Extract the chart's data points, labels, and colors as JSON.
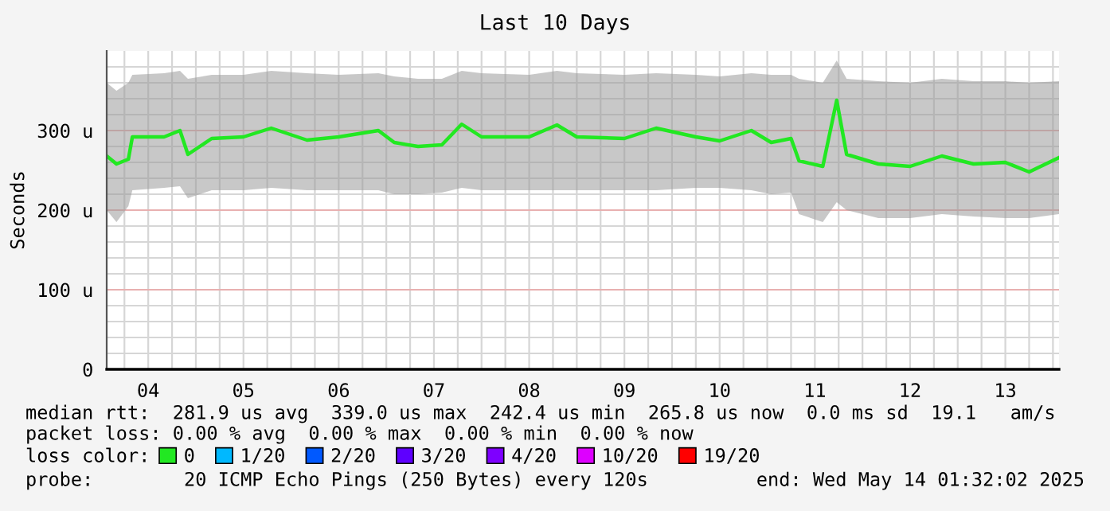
{
  "chart_data": {
    "type": "line",
    "title": "Last 10 Days",
    "ylabel": "Seconds",
    "x": [
      "2025-05-04T01:32",
      "2025-05-04T04:00",
      "2025-05-04T07:00",
      "2025-05-04T08:00",
      "2025-05-04T16:00",
      "2025-05-04T20:00",
      "2025-05-04T22:00",
      "2025-05-05T04:00",
      "2025-05-05T12:00",
      "2025-05-05T19:00",
      "2025-05-06T04:00",
      "2025-05-06T12:00",
      "2025-05-06T22:00",
      "2025-05-07T02:00",
      "2025-05-07T08:00",
      "2025-05-07T14:00",
      "2025-05-07T19:00",
      "2025-05-08T00:00",
      "2025-05-08T12:00",
      "2025-05-08T19:00",
      "2025-05-09T00:00",
      "2025-05-09T12:00",
      "2025-05-09T20:00",
      "2025-05-10T06:00",
      "2025-05-10T12:00",
      "2025-05-10T20:00",
      "2025-05-11T01:00",
      "2025-05-11T06:00",
      "2025-05-11T08:00",
      "2025-05-11T14:00",
      "2025-05-11T17:30",
      "2025-05-11T20:00",
      "2025-05-12T04:00",
      "2025-05-12T12:00",
      "2025-05-12T20:00",
      "2025-05-13T04:00",
      "2025-05-13T12:00",
      "2025-05-13T18:00",
      "2025-05-14T01:32"
    ],
    "series": [
      {
        "name": "0",
        "color": "#22e822",
        "values": [
          268,
          258,
          264,
          292,
          292,
          300,
          270,
          290,
          292,
          303,
          288,
          292,
          300,
          285,
          280,
          282,
          308,
          292,
          292,
          307,
          292,
          290,
          303,
          292,
          287,
          300,
          285,
          290,
          262,
          255,
          338,
          270,
          258,
          255,
          268,
          258,
          260,
          248,
          266
        ],
        "lower": [
          200,
          185,
          205,
          225,
          228,
          230,
          215,
          225,
          225,
          228,
          225,
          225,
          225,
          220,
          220,
          222,
          228,
          225,
          225,
          225,
          225,
          225,
          225,
          228,
          228,
          225,
          220,
          222,
          195,
          185,
          210,
          200,
          190,
          190,
          195,
          192,
          190,
          190,
          195
        ],
        "upper": [
          360,
          350,
          360,
          370,
          372,
          375,
          365,
          370,
          370,
          375,
          372,
          370,
          372,
          368,
          365,
          365,
          375,
          372,
          370,
          375,
          372,
          370,
          372,
          370,
          368,
          372,
          370,
          370,
          365,
          360,
          388,
          365,
          362,
          360,
          365,
          362,
          362,
          360,
          362
        ]
      },
      {
        "name": "1/20",
        "color": "#00b8ff",
        "values": [
          null,
          null,
          null,
          null,
          null,
          null,
          null,
          null,
          null,
          null,
          null,
          null,
          null,
          null,
          null,
          null,
          null,
          null,
          null,
          null,
          null,
          null,
          null,
          null,
          null,
          null,
          null,
          null,
          null,
          null,
          null,
          null,
          null,
          null,
          null,
          null,
          null,
          null,
          null
        ]
      },
      {
        "name": "2/20",
        "color": "#0059ff",
        "values": [
          null,
          null,
          null,
          null,
          null,
          null,
          null,
          null,
          null,
          null,
          null,
          null,
          null,
          null,
          null,
          null,
          null,
          null,
          null,
          null,
          null,
          null,
          null,
          null,
          null,
          null,
          null,
          null,
          null,
          null,
          null,
          null,
          null,
          null,
          null,
          null,
          null,
          null,
          null
        ]
      },
      {
        "name": "3/20",
        "color": "#5e00ff",
        "values": [
          null,
          null,
          null,
          null,
          null,
          null,
          null,
          null,
          null,
          null,
          null,
          null,
          null,
          null,
          null,
          null,
          null,
          null,
          null,
          null,
          null,
          null,
          null,
          null,
          null,
          null,
          null,
          null,
          null,
          null,
          null,
          null,
          null,
          null,
          null,
          null,
          null,
          null,
          null
        ]
      },
      {
        "name": "4/20",
        "color": "#7e00ff",
        "values": [
          null,
          null,
          null,
          null,
          null,
          null,
          null,
          null,
          null,
          null,
          null,
          null,
          null,
          null,
          null,
          null,
          null,
          null,
          null,
          null,
          null,
          null,
          null,
          null,
          null,
          null,
          null,
          null,
          null,
          null,
          null,
          null,
          null,
          null,
          null,
          null,
          null,
          null,
          null
        ]
      },
      {
        "name": "10/20",
        "color": "#dd00ff",
        "values": [
          null,
          null,
          null,
          null,
          null,
          null,
          null,
          null,
          null,
          null,
          null,
          null,
          null,
          null,
          null,
          null,
          null,
          null,
          null,
          null,
          null,
          null,
          null,
          null,
          null,
          null,
          null,
          null,
          null,
          null,
          null,
          null,
          null,
          null,
          null,
          null,
          null,
          null,
          null
        ]
      },
      {
        "name": "19/20",
        "color": "#ff0000",
        "values": [
          null,
          null,
          null,
          null,
          null,
          null,
          null,
          null,
          null,
          null,
          null,
          null,
          null,
          null,
          null,
          null,
          null,
          null,
          null,
          null,
          null,
          null,
          null,
          null,
          null,
          null,
          null,
          null,
          null,
          null,
          null,
          null,
          null,
          null,
          null,
          null,
          null,
          null,
          null
        ]
      }
    ],
    "legend_title": "loss color:",
    "legend": "bottom",
    "xlim": [
      "2025-05-04T01:32",
      "2025-05-14T01:32"
    ],
    "xticks": [
      {
        "value": "2025-05-04T06:00",
        "label": null
      },
      {
        "value": "2025-05-04T12:00",
        "label": "04"
      },
      {
        "value": "2025-05-04T18:00",
        "label": null
      },
      {
        "value": "2025-05-05T00:00",
        "label": null
      },
      {
        "value": "2025-05-05T06:00",
        "label": null
      },
      {
        "value": "2025-05-05T12:00",
        "label": "05"
      },
      {
        "value": "2025-05-05T18:00",
        "label": null
      },
      {
        "value": "2025-05-06T00:00",
        "label": null
      },
      {
        "value": "2025-05-06T06:00",
        "label": null
      },
      {
        "value": "2025-05-06T12:00",
        "label": "06"
      },
      {
        "value": "2025-05-06T18:00",
        "label": null
      },
      {
        "value": "2025-05-07T00:00",
        "label": null
      },
      {
        "value": "2025-05-07T06:00",
        "label": null
      },
      {
        "value": "2025-05-07T12:00",
        "label": "07"
      },
      {
        "value": "2025-05-07T18:00",
        "label": null
      },
      {
        "value": "2025-05-08T00:00",
        "label": null
      },
      {
        "value": "2025-05-08T06:00",
        "label": null
      },
      {
        "value": "2025-05-08T12:00",
        "label": "08"
      },
      {
        "value": "2025-05-08T18:00",
        "label": null
      },
      {
        "value": "2025-05-09T00:00",
        "label": null
      },
      {
        "value": "2025-05-09T06:00",
        "label": null
      },
      {
        "value": "2025-05-09T12:00",
        "label": "09"
      },
      {
        "value": "2025-05-09T18:00",
        "label": null
      },
      {
        "value": "2025-05-10T00:00",
        "label": null
      },
      {
        "value": "2025-05-10T06:00",
        "label": null
      },
      {
        "value": "2025-05-10T12:00",
        "label": "10"
      },
      {
        "value": "2025-05-10T18:00",
        "label": null
      },
      {
        "value": "2025-05-11T00:00",
        "label": null
      },
      {
        "value": "2025-05-11T06:00",
        "label": null
      },
      {
        "value": "2025-05-11T12:00",
        "label": "11"
      },
      {
        "value": "2025-05-11T18:00",
        "label": null
      },
      {
        "value": "2025-05-12T00:00",
        "label": null
      },
      {
        "value": "2025-05-12T06:00",
        "label": null
      },
      {
        "value": "2025-05-12T12:00",
        "label": "12"
      },
      {
        "value": "2025-05-12T18:00",
        "label": null
      },
      {
        "value": "2025-05-13T00:00",
        "label": null
      },
      {
        "value": "2025-05-13T06:00",
        "label": null
      },
      {
        "value": "2025-05-13T12:00",
        "label": "13"
      },
      {
        "value": "2025-05-13T18:00",
        "label": null
      },
      {
        "value": "2025-05-14T00:00",
        "label": null
      }
    ],
    "ylim": [
      0,
      400
    ],
    "yticks": [
      0,
      {
        "value": 20,
        "label": null
      },
      {
        "value": 40,
        "label": null
      },
      {
        "value": 60,
        "label": null
      },
      {
        "value": 80,
        "label": null
      },
      {
        "value": 100,
        "label": "100 u"
      },
      {
        "value": 120,
        "label": null
      },
      {
        "value": 140,
        "label": null
      },
      {
        "value": 160,
        "label": null
      },
      {
        "value": 180,
        "label": null
      },
      {
        "value": 200,
        "label": "200 u"
      },
      {
        "value": 220,
        "label": null
      },
      {
        "value": 240,
        "label": null
      },
      {
        "value": 260,
        "label": null
      },
      {
        "value": 280,
        "label": null
      },
      {
        "value": 300,
        "label": "300 u"
      },
      {
        "value": 320,
        "label": null
      },
      {
        "value": 340,
        "label": null
      },
      {
        "value": 360,
        "label": null
      },
      {
        "value": 380,
        "label": null
      }
    ],
    "grid": true,
    "marker": "none",
    "line_style": "solid",
    "annotations": [
      "median rtt:  281.9 us avg  339.0 us max  242.4 us min  265.8 us now  0.0 ms sd  19.1   am/s",
      "packet loss: 0.00 % avg  0.00 % max  0.00 % min  0.00 % now",
      "probe:        20 ICMP Echo Pings (250 Bytes) every 120s",
      "end: Wed May 14 01:32:02 2025"
    ]
  }
}
